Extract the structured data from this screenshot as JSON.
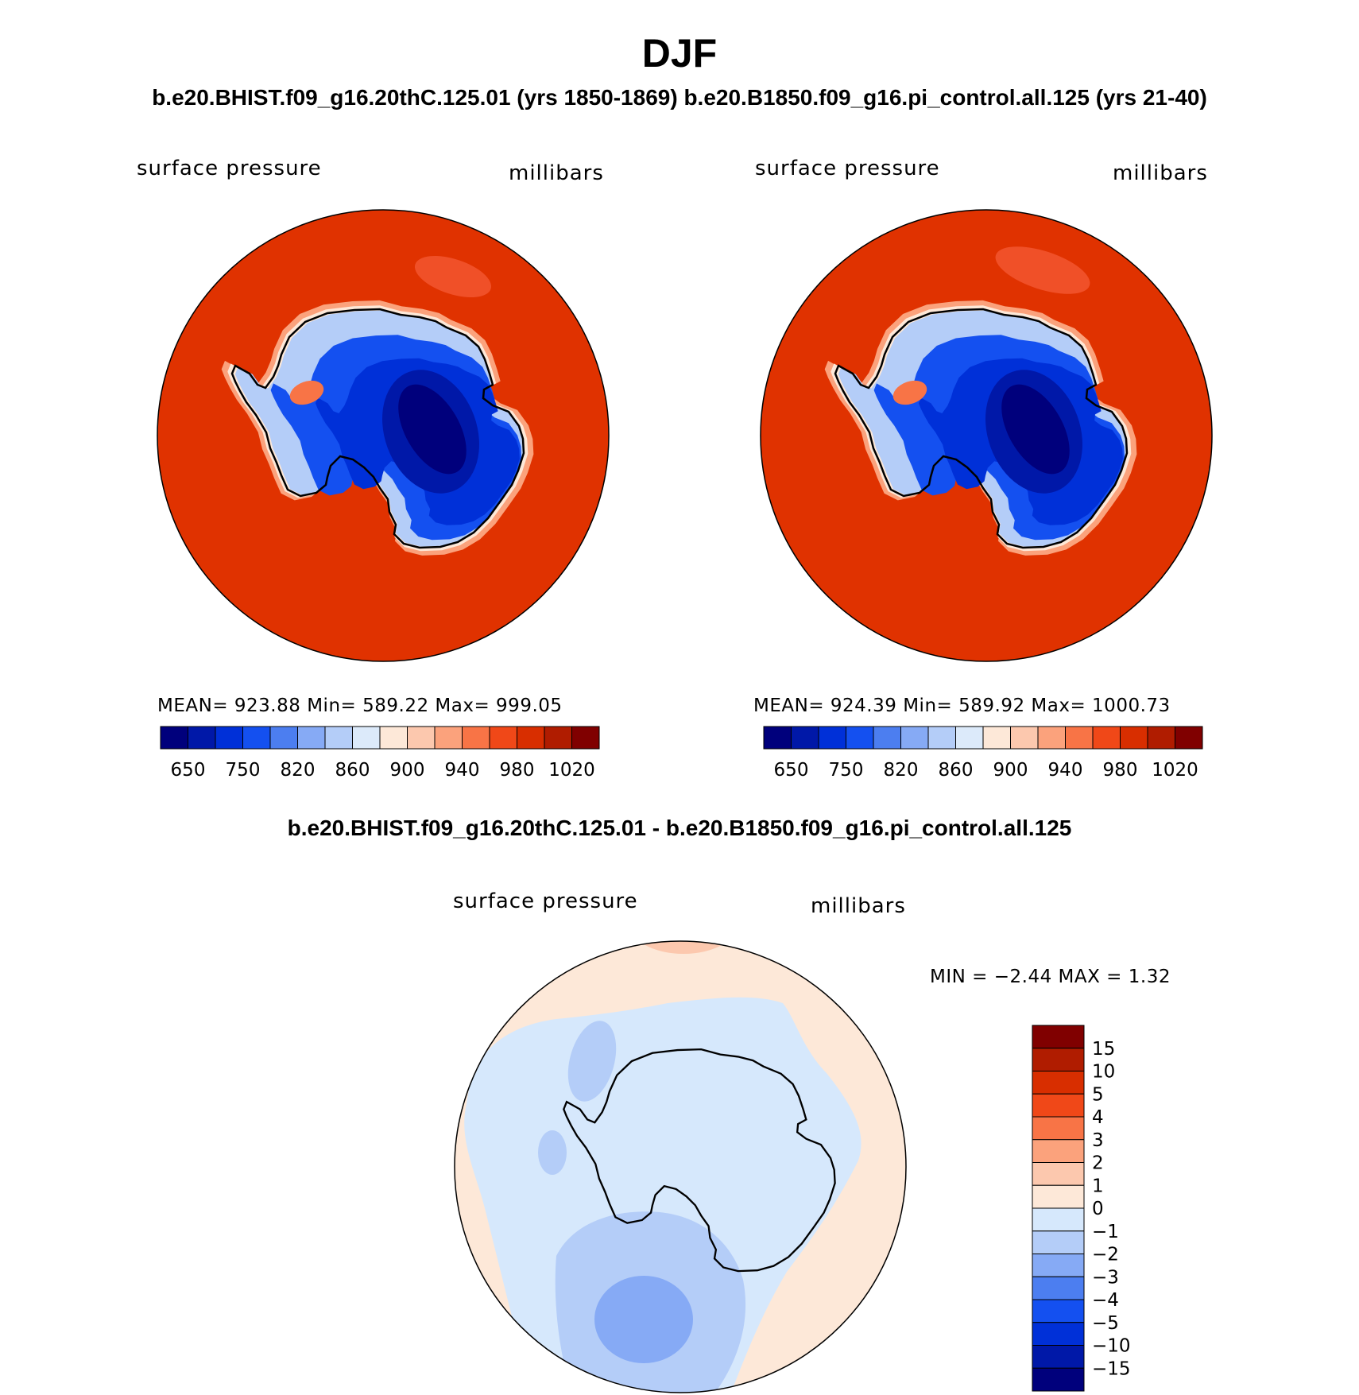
{
  "title": "DJF",
  "subtitle": "b.e20.BHIST.f09_g16.20thC.125.01 (yrs 1850-1869)  b.e20.B1850.f09_g16.pi_control.all.125 (yrs 21-40)",
  "diff_title": "b.e20.BHIST.f09_g16.20thC.125.01 - b.e20.B1850.f09_g16.pi_control.all.125",
  "colors": {
    "ocean": "#e03200",
    "ocean_light": "#f05028",
    "coast": "#000000",
    "diff_pos1": "#fde8d8",
    "diff_pos2": "#fcc8ae",
    "diff_neg1": "#d6e8fc",
    "diff_neg2": "#b4cdf8",
    "diff_neg3": "#86aaf5"
  },
  "chart_data": [
    {
      "type": "heatmap",
      "panel": "left",
      "variable": "surface pressure",
      "units": "millibars",
      "stats": {
        "mean_label": "MEAN=",
        "mean": "923.88",
        "min_label": "Min=",
        "min": "589.22",
        "max_label": "Max=",
        "max": "999.05"
      },
      "colorbar_colors": [
        "#00007c",
        "#0018a8",
        "#0030d8",
        "#1450f0",
        "#4c7ef0",
        "#86aaf5",
        "#b4cdf8",
        "#dceafa",
        "#fde8d8",
        "#fcc8ae",
        "#fba27c",
        "#f87446",
        "#f04818",
        "#d82e00",
        "#b01c00",
        "#800000"
      ],
      "colorbar_ticks": [
        "650",
        "750",
        "820",
        "860",
        "900",
        "940",
        "980",
        "1020"
      ]
    },
    {
      "type": "heatmap",
      "panel": "right",
      "variable": "surface pressure",
      "units": "millibars",
      "stats": {
        "mean_label": "MEAN=",
        "mean": "924.39",
        "min_label": "Min=",
        "min": "589.92",
        "max_label": "Max=",
        "max": "1000.73"
      },
      "colorbar_colors": [
        "#00007c",
        "#0018a8",
        "#0030d8",
        "#1450f0",
        "#4c7ef0",
        "#86aaf5",
        "#b4cdf8",
        "#dceafa",
        "#fde8d8",
        "#fcc8ae",
        "#fba27c",
        "#f87446",
        "#f04818",
        "#d82e00",
        "#b01c00",
        "#800000"
      ],
      "colorbar_ticks": [
        "650",
        "750",
        "820",
        "860",
        "900",
        "940",
        "980",
        "1020"
      ]
    },
    {
      "type": "heatmap",
      "panel": "difference",
      "variable": "surface pressure",
      "units": "millibars",
      "stats": {
        "min_label": "MIN =",
        "min": "−2.44",
        "max_label": "MAX =",
        "max": "1.32"
      },
      "colorbar_colors": [
        "#800000",
        "#b01c00",
        "#d82e00",
        "#f04818",
        "#f87446",
        "#fba27c",
        "#fcc8ae",
        "#fde8d8",
        "#d6e8fc",
        "#b4cdf8",
        "#86aaf5",
        "#4c7ef0",
        "#1450f0",
        "#0030d8",
        "#0018a8",
        "#00007c"
      ],
      "colorbar_ticks": [
        "15",
        "10",
        "5",
        "4",
        "3",
        "2",
        "1",
        "0",
        "−1",
        "−2",
        "−3",
        "−4",
        "−5",
        "−10",
        "−15"
      ]
    }
  ]
}
